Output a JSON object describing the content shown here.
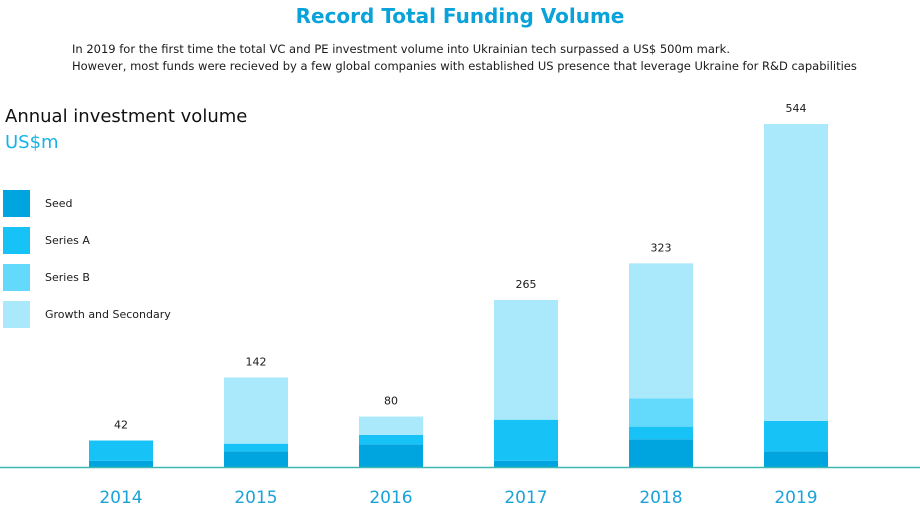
{
  "header": {
    "title": "Record Total Funding Volume",
    "subtitle_line1": "In 2019 for the first time the total VC and PE investment volume into Ukrainian tech  surpassed a US$ 500m mark.",
    "subtitle_line2": "However, most funds were recieved by a few global companies with established US presence that leverage Ukraine for R&D capabilities"
  },
  "chart_data": {
    "type": "bar",
    "stacked": true,
    "title": "Annual investment volume",
    "ylabel": "US$m",
    "categories": [
      "2014",
      "2015",
      "2016",
      "2017",
      "2018",
      "2019"
    ],
    "totals": [
      42,
      142,
      80,
      265,
      323,
      544
    ],
    "series": [
      {
        "name": "Seed",
        "color": "#00a5df",
        "values": [
          10,
          25,
          36,
          10,
          44,
          25
        ]
      },
      {
        "name": "Series A",
        "color": "#17c3f6",
        "values": [
          32,
          12,
          15,
          65,
          20,
          48
        ]
      },
      {
        "name": "Series B",
        "color": "#63d9fb",
        "values": [
          0,
          0,
          0,
          0,
          45,
          0
        ]
      },
      {
        "name": "Growth and Secondary",
        "color": "#a9e9fb",
        "values": [
          0,
          105,
          29,
          190,
          214,
          471
        ]
      }
    ],
    "ylim": [
      0,
      544
    ],
    "grid": false,
    "legend_position": "left",
    "axis_color": "#3cb8b0",
    "category_label_color": "#1ba3d8"
  }
}
